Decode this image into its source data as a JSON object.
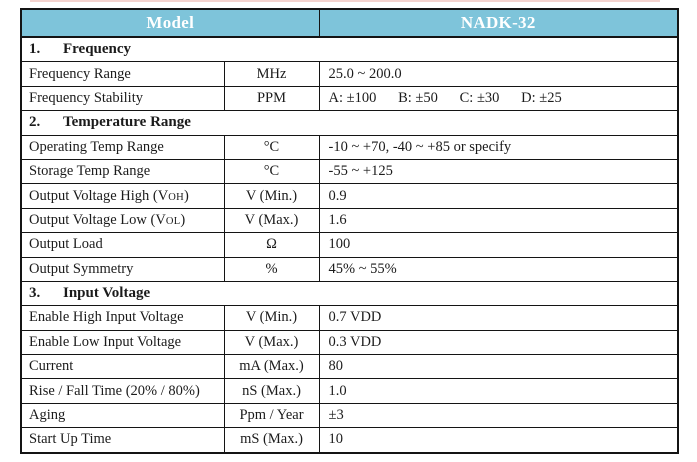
{
  "page": {
    "background_color": "#ffffff",
    "edge_artifact_color": "#f2cbc7"
  },
  "table": {
    "border_color": "#141414",
    "header": {
      "model_label": "Model",
      "product_label": "NADK-32",
      "bg_color": "#7ec4da",
      "text_color": "#ffffff"
    },
    "rows": [
      {
        "type": "section",
        "num": "1.",
        "title": "Frequency"
      },
      {
        "type": "data",
        "param": "Frequency Range",
        "unit": "MHz",
        "value": "25.0 ~ 200.0"
      },
      {
        "type": "data",
        "param": "Frequency Stability",
        "unit": "PPM",
        "value": "A: ±100      B: ±50      C: ±30      D: ±25"
      },
      {
        "type": "section",
        "num": "2.",
        "title": "Temperature Range"
      },
      {
        "type": "data",
        "param": "Operating Temp Range",
        "unit": "°C",
        "value": "-10 ~ +70, -40 ~ +85 or specify"
      },
      {
        "type": "data",
        "param": "Storage Temp Range",
        "unit": "°C",
        "value": "-55 ~ +125"
      },
      {
        "type": "data",
        "param": "Output Voltage High (V",
        "param_sub": "OH",
        "param_close": ")",
        "unit": "V (Min.)",
        "value": "0.9"
      },
      {
        "type": "data",
        "param": "Output Voltage Low (V",
        "param_sub": "OL",
        "param_close": ")",
        "unit": "V (Max.)",
        "value": "1.6"
      },
      {
        "type": "data",
        "param": "Output Load",
        "unit": "Ω",
        "value": "100"
      },
      {
        "type": "data",
        "param": "Output Symmetry",
        "unit": "%",
        "value": "45% ~ 55%"
      },
      {
        "type": "section",
        "num": "3.",
        "title": "Input Voltage"
      },
      {
        "type": "data",
        "param": "Enable High Input Voltage",
        "unit": "V (Min.)",
        "value": "0.7 VDD"
      },
      {
        "type": "data",
        "param": "Enable Low Input Voltage",
        "unit": "V (Max.)",
        "value": "0.3 VDD"
      },
      {
        "type": "data",
        "param": "Current",
        "unit": "mA (Max.)",
        "value": "80"
      },
      {
        "type": "data",
        "param": "Rise / Fall Time (20% / 80%)",
        "unit": "nS (Max.)",
        "value": "1.0"
      },
      {
        "type": "data",
        "param": "Aging",
        "unit": "Ppm / Year",
        "value": "±3"
      },
      {
        "type": "data",
        "param": "Start Up Time",
        "unit": "mS (Max.)",
        "value": "10"
      }
    ]
  }
}
